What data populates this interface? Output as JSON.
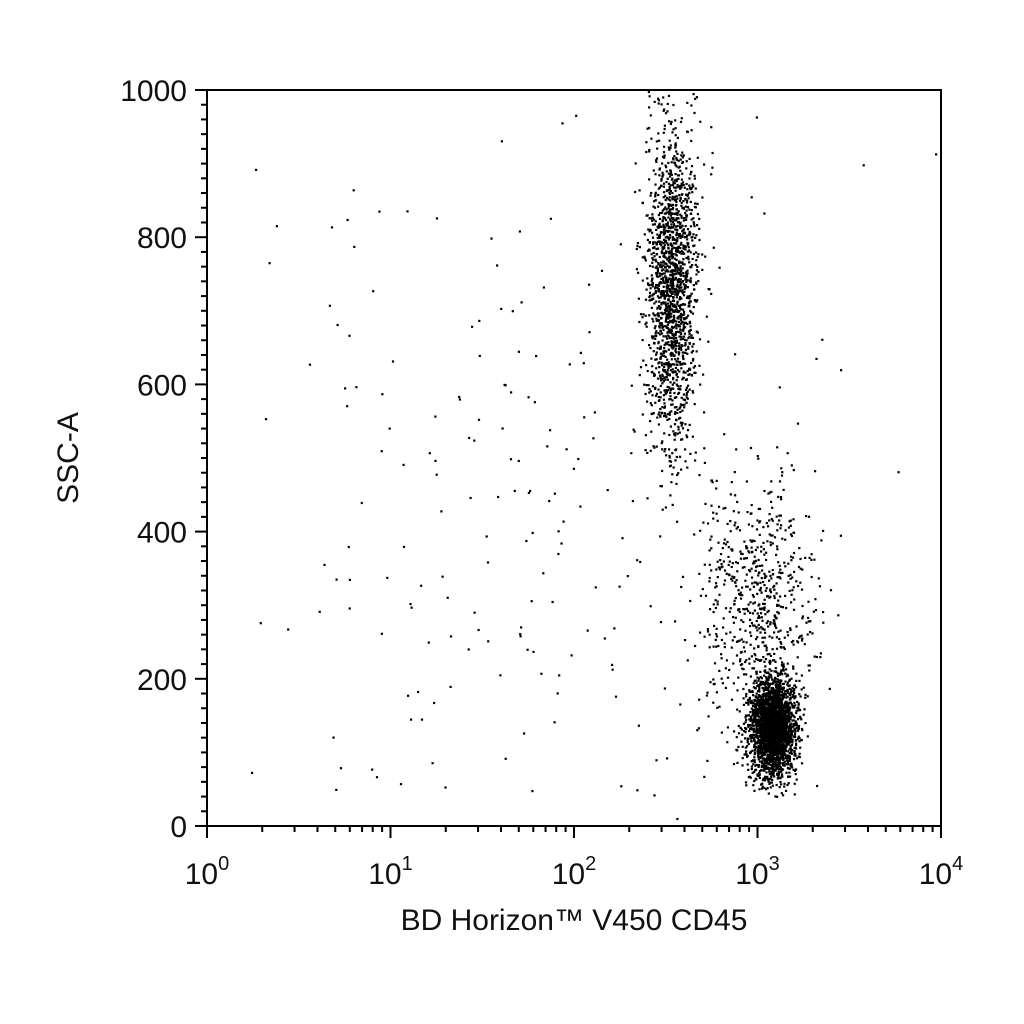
{
  "chart_data": {
    "type": "scatter",
    "x_scale": "log",
    "xlabel": "BD Horizon™ V450 CD45",
    "ylabel": "SSC-A",
    "xlim": [
      1,
      10000
    ],
    "ylim": [
      0,
      1000
    ],
    "x_ticks": [
      {
        "base": "10",
        "exp": "0",
        "value": 1
      },
      {
        "base": "10",
        "exp": "1",
        "value": 10
      },
      {
        "base": "10",
        "exp": "2",
        "value": 100
      },
      {
        "base": "10",
        "exp": "3",
        "value": 1000
      },
      {
        "base": "10",
        "exp": "4",
        "value": 10000
      }
    ],
    "y_ticks": [
      {
        "label": "0",
        "value": 0
      },
      {
        "label": "200",
        "value": 200
      },
      {
        "label": "400",
        "value": 400
      },
      {
        "label": "600",
        "value": 600
      },
      {
        "label": "800",
        "value": 800
      },
      {
        "label": "1000",
        "value": 1000
      }
    ],
    "grid": false,
    "legend": "none",
    "point_color": "#000000",
    "populations": [
      {
        "x_center": 340,
        "x_log_sd": 0.07,
        "y_center": 740,
        "y_sd": 110,
        "y_min": 430,
        "y_max": 1000,
        "count": 1700
      },
      {
        "x_center": 1200,
        "x_log_sd": 0.06,
        "y_center": 135,
        "y_sd": 32,
        "y_min": 40,
        "y_max": 260,
        "count": 2600
      },
      {
        "x_center": 1000,
        "x_log_sd": 0.16,
        "y_center": 300,
        "y_sd": 90,
        "y_min": 50,
        "y_max": 600,
        "count": 700
      },
      {
        "x_center": 60,
        "x_log_sd": 0.8,
        "y_center": 400,
        "y_sd": 280,
        "y_min": 0,
        "y_max": 1000,
        "count": 220
      }
    ]
  }
}
